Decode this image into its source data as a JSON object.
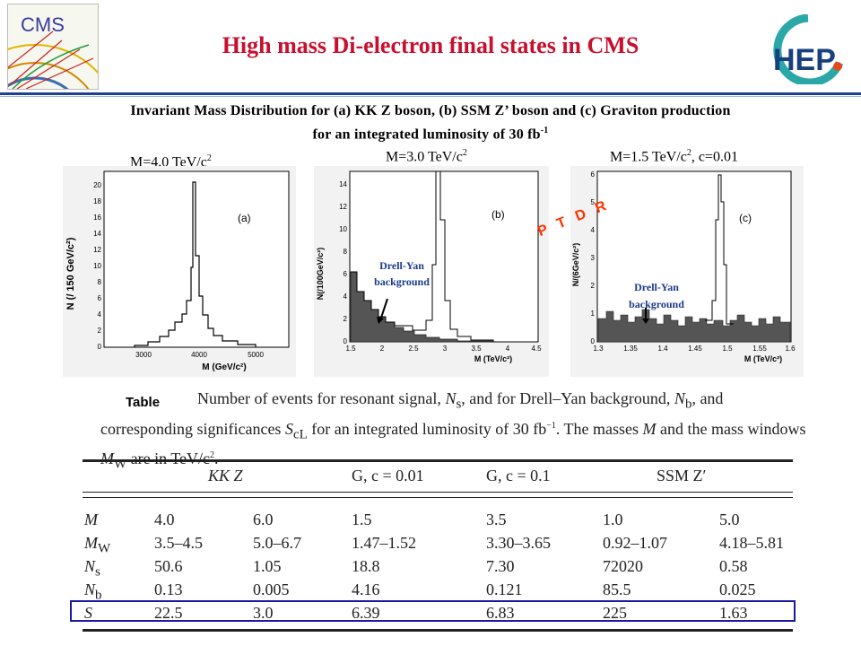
{
  "header": {
    "title": "High mass Di-electron final states in CMS",
    "cms_logo_text": "CMS",
    "hep_logo_text": "HEP"
  },
  "subtitle": {
    "line1": "Invariant Mass Distribution for (a) KK Z boson, (b) SSM Z’ boson and  (c) Graviton production",
    "line2": "for an integrated luminosity of 30 fb",
    "line2_sup": "-1"
  },
  "panels": {
    "a": {
      "mass_label": "M=4.0 TeV/c",
      "mass_sup": "2",
      "ylabel": "N (/ 150 GeV/c²)",
      "xlabel": "M (GeV/c²)",
      "tag": "(a)",
      "yticks": [
        "0",
        "2",
        "4",
        "6",
        "8",
        "10",
        "12",
        "14",
        "16",
        "18",
        "20"
      ],
      "xticks": [
        "3000",
        "4000",
        "5000"
      ]
    },
    "b": {
      "mass_label": "M=3.0 TeV/c",
      "mass_sup": "2",
      "ylabel": "N(/100GeV/c²)",
      "xlabel": "M (TeV/c²)",
      "tag": "(b)",
      "dy_label_1": "Drell-Yan",
      "dy_label_2": "background",
      "yticks": [
        "0",
        "2",
        "4",
        "6",
        "8",
        "10",
        "12",
        "14"
      ],
      "xticks": [
        "1.5",
        "2",
        "2.5",
        "3",
        "3.5",
        "4",
        "4.5"
      ]
    },
    "c": {
      "mass_label": "M=1.5 TeV/c",
      "mass_sup": "2",
      "mass_suffix": ", c=0.01",
      "ylabel": "N/(6GeV/c²)",
      "xlabel": "M (TeV/c²)",
      "tag": "(c)",
      "dy_label_1": "Drell-Yan",
      "dy_label_2": "background",
      "yticks": [
        "0",
        "1",
        "2",
        "3",
        "4",
        "5",
        "6"
      ],
      "xticks": [
        "1.3",
        "1.35",
        "1.4",
        "1.45",
        "1.5",
        "1.55",
        "1.6"
      ]
    }
  },
  "stamp": "P T D R",
  "table": {
    "label": "Table",
    "caption_1": "Number of events for resonant signal, ",
    "caption_ns": "N",
    "caption_ns_sub": "s",
    "caption_2": ", and for Drell–Yan background, ",
    "caption_nb": "N",
    "caption_nb_sub": "b",
    "caption_3": ", and corresponding significances ",
    "caption_scl": "S",
    "caption_scl_sub": "cL",
    "caption_4": " for an integrated luminosity of 30 fb",
    "caption_4_sup": "−1",
    "caption_5": ". The masses ",
    "caption_m": "M",
    "caption_6": " and the mass windows ",
    "caption_mw": "M",
    "caption_mw_sub": "W",
    "caption_7": " are in  TeV/c",
    "caption_7_sup": "2",
    "caption_8": ".",
    "headers": [
      "KK Z",
      "G, c = 0.01",
      "G, c = 0.1",
      "SSM Z′"
    ],
    "rows": [
      {
        "name": "M",
        "sub": "",
        "values": [
          "4.0",
          "6.0",
          "1.5",
          "3.5",
          "1.0",
          "5.0"
        ]
      },
      {
        "name": "M",
        "sub": "W",
        "values": [
          "3.5–4.5",
          "5.0–6.7",
          "1.47–1.52",
          "3.30–3.65",
          "0.92–1.07",
          "4.18–5.81"
        ]
      },
      {
        "name": "N",
        "sub": "s",
        "values": [
          "50.6",
          "1.05",
          "18.8",
          "7.30",
          "72020",
          "0.58"
        ]
      },
      {
        "name": "N",
        "sub": "b",
        "values": [
          "0.13",
          "0.005",
          "4.16",
          "0.121",
          "85.5",
          "0.025"
        ]
      },
      {
        "name": "S",
        "sub": "",
        "values": [
          "22.5",
          "3.0",
          "6.39",
          "6.83",
          "225",
          "1.63"
        ]
      }
    ]
  }
}
